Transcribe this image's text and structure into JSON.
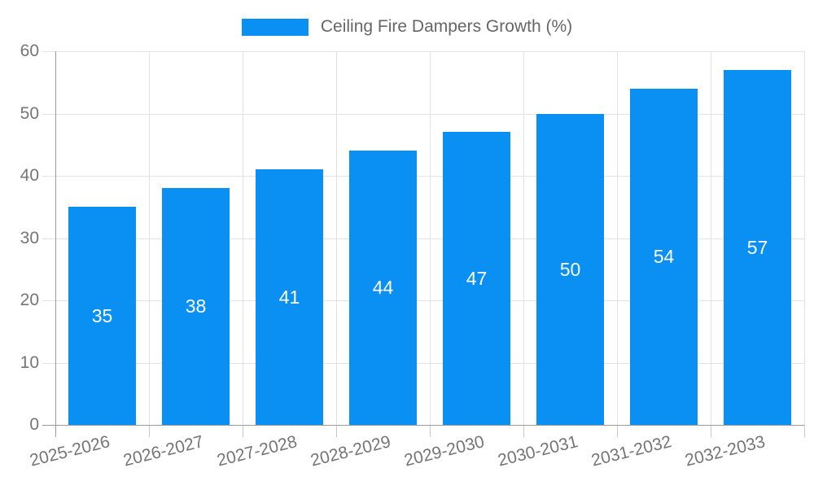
{
  "legend": {
    "label": "Ceiling Fire Dampers Growth (%)"
  },
  "chart_data": {
    "type": "bar",
    "title": "Ceiling Fire Dampers Growth (%)",
    "series_name": "Ceiling Fire Dampers Growth (%)",
    "categories": [
      "2025-2026",
      "2026-2027",
      "2027-2028",
      "2028-2029",
      "2029-2030",
      "2030-2031",
      "2031-2032",
      "2032-2033"
    ],
    "values": [
      35,
      38,
      41,
      44,
      47,
      50,
      54,
      57
    ],
    "xlabel": "",
    "ylabel": "",
    "ylim": [
      0,
      60
    ],
    "ytick_step": 10,
    "yticks": [
      0,
      10,
      20,
      30,
      40,
      50,
      60
    ],
    "grid": true,
    "legend_position": "top-center",
    "value_labels": "inside-center"
  },
  "colors": {
    "bar": "#0990f2",
    "grid": "#e2e2e2",
    "axis": "#9a9a9a",
    "tick": "#c9c9c9",
    "tick_text": "#757575",
    "legend_text": "#666666",
    "value_label": "#ffffff",
    "background": "#ffffff"
  }
}
